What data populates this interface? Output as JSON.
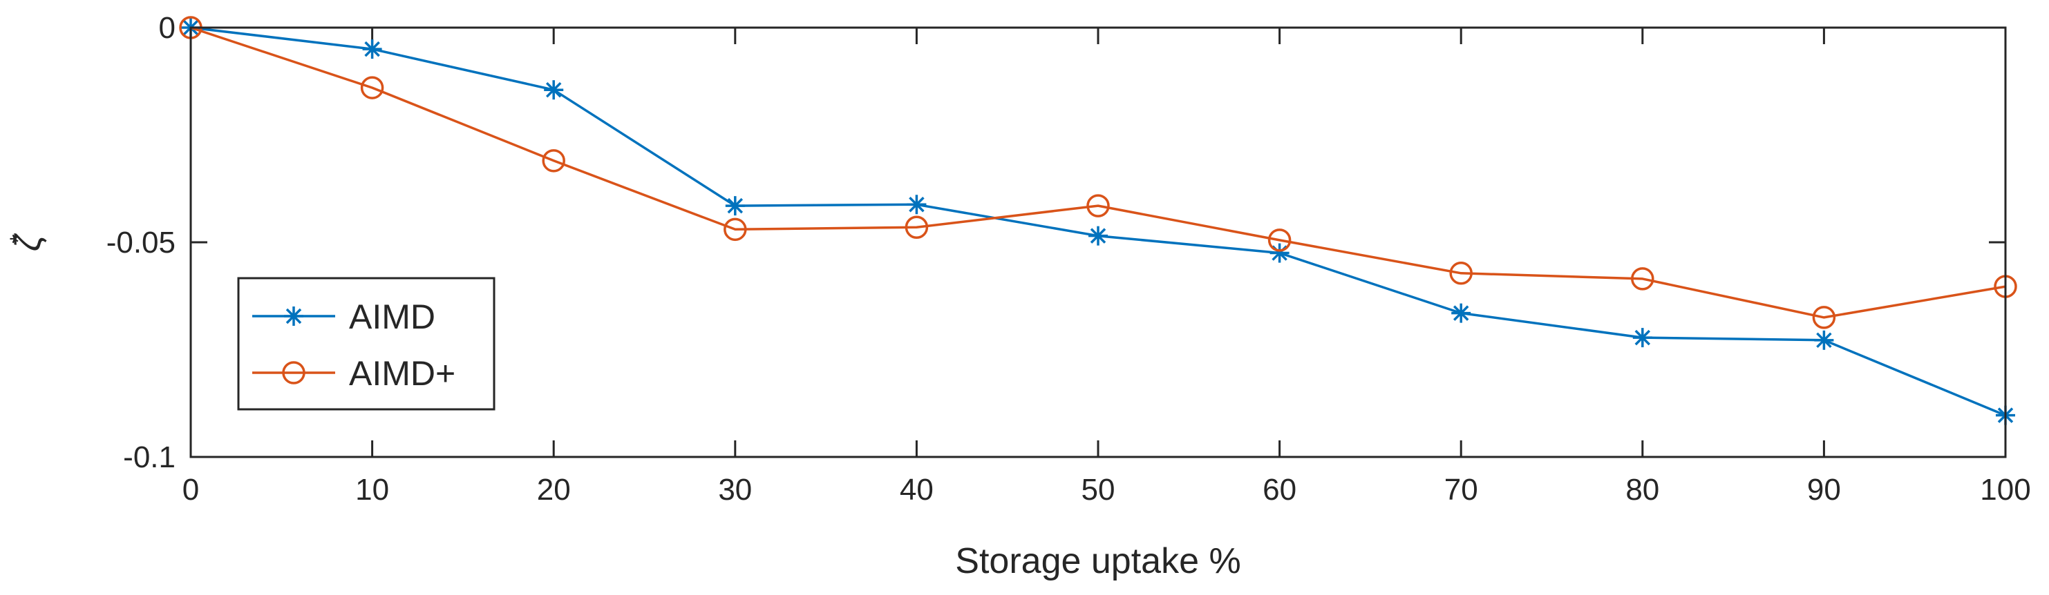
{
  "chart_data": {
    "type": "line",
    "title": "",
    "xlabel": "Storage uptake %",
    "ylabel": "ζ*",
    "ylabel_base": "ζ",
    "ylabel_sup": "*",
    "xlim": [
      0,
      100
    ],
    "ylim": [
      -0.1,
      0
    ],
    "x_ticks": [
      0,
      10,
      20,
      30,
      40,
      50,
      60,
      70,
      80,
      90,
      100
    ],
    "x_tick_labels": [
      "0",
      "10",
      "20",
      "30",
      "40",
      "50",
      "60",
      "70",
      "80",
      "90",
      "100"
    ],
    "y_ticks": [
      0,
      -0.05,
      -0.1
    ],
    "y_tick_labels": [
      "0",
      "-0.05",
      "-0.1"
    ],
    "grid": false,
    "legend_position": "bottom-left",
    "x": [
      0,
      10,
      20,
      30,
      40,
      50,
      60,
      70,
      80,
      90,
      100
    ],
    "series": [
      {
        "name": "AIMD",
        "color": "#0072BD",
        "marker": "asterisk",
        "values": [
          0,
          -0.005,
          -0.0145,
          -0.0415,
          -0.0412,
          -0.0485,
          -0.0525,
          -0.0665,
          -0.0722,
          -0.0728,
          -0.0903
        ]
      },
      {
        "name": "AIMD+",
        "color": "#D95319",
        "marker": "circle",
        "values": [
          0,
          -0.014,
          -0.031,
          -0.047,
          -0.0465,
          -0.0415,
          -0.0495,
          -0.0572,
          -0.0585,
          -0.0675,
          -0.0603
        ]
      }
    ]
  }
}
